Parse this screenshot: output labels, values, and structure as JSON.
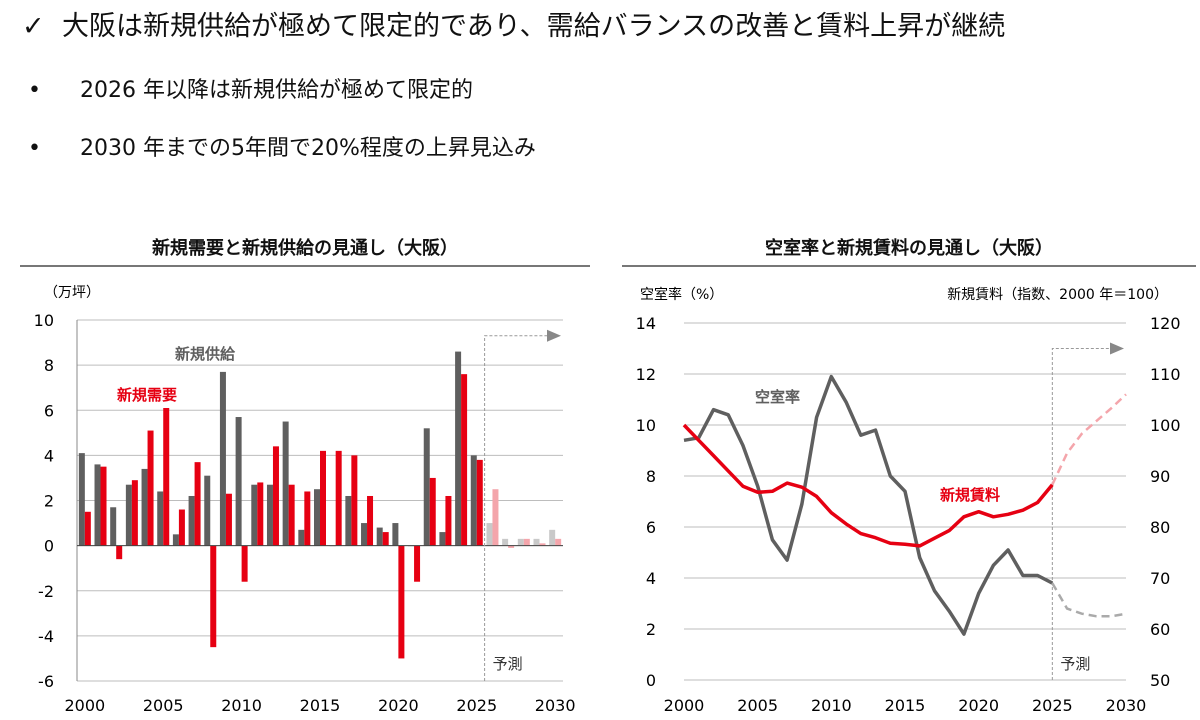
{
  "headline": {
    "check_icon": "check-icon",
    "text": "大阪は新規供給が極めて限定的であり、需給バランスの改善と賃料上昇が継続"
  },
  "bullets": [
    "2026 年以降は新規供給が極めて限定的",
    "2030 年までの5年間で20%程度の上昇見込み"
  ],
  "colors": {
    "supply": "#5f5f5f",
    "demand": "#e60012",
    "supply_forecast": "#c9c9c9",
    "demand_forecast": "#f4a5ab",
    "grid": "#bdbdbd"
  },
  "chart_data": [
    {
      "type": "bar",
      "title": "新規需要と新規供給の見通し（大阪）",
      "unit_label": "（万坪）",
      "ylim": [
        -6,
        10
      ],
      "yticks": [
        -6,
        -4,
        -2,
        0,
        2,
        4,
        6,
        8,
        10
      ],
      "xticks": [
        2000,
        2005,
        2010,
        2015,
        2020,
        2025,
        2030
      ],
      "grid": true,
      "forecast_start": 2025.5,
      "forecast_label": "予測",
      "x": [
        2000,
        2001,
        2002,
        2003,
        2004,
        2005,
        2006,
        2007,
        2008,
        2009,
        2010,
        2011,
        2012,
        2013,
        2014,
        2015,
        2016,
        2017,
        2018,
        2019,
        2020,
        2021,
        2022,
        2023,
        2024,
        2025,
        2026,
        2027,
        2028,
        2029,
        2030
      ],
      "series": [
        {
          "name": "新規供給",
          "values": [
            4.1,
            3.6,
            1.7,
            2.7,
            3.4,
            2.4,
            0.5,
            2.2,
            3.1,
            7.7,
            5.7,
            2.7,
            2.7,
            5.5,
            0.7,
            2.5,
            0,
            2.2,
            1.0,
            0.8,
            1.0,
            0,
            5.2,
            0.6,
            8.6,
            4.0,
            1.0,
            0.3,
            0.3,
            0.3,
            0.7
          ]
        },
        {
          "name": "新規需要",
          "values": [
            1.5,
            3.5,
            -0.6,
            2.9,
            5.1,
            6.1,
            1.6,
            3.7,
            -4.5,
            2.3,
            -1.6,
            2.8,
            4.4,
            2.7,
            2.4,
            4.2,
            4.2,
            4.0,
            2.2,
            0.6,
            -5.0,
            -1.6,
            3.0,
            2.2,
            7.6,
            3.8,
            2.5,
            -0.1,
            0.3,
            0.1,
            0.3
          ]
        }
      ]
    },
    {
      "type": "line",
      "title": "空室率と新規賃料の見通し（大阪）",
      "ylabel": "空室率（%）",
      "y2label": "新規賃料（指数、2000 年＝100）",
      "ylim": [
        0,
        14
      ],
      "yticks": [
        0,
        2,
        4,
        6,
        8,
        10,
        12,
        14
      ],
      "y2lim": [
        50,
        120
      ],
      "y2ticks": [
        50,
        60,
        70,
        80,
        90,
        100,
        110,
        120
      ],
      "xticks": [
        2000,
        2005,
        2010,
        2015,
        2020,
        2025,
        2030
      ],
      "grid": true,
      "forecast_start": 2025,
      "forecast_label": "予測",
      "series": [
        {
          "name": "空室率",
          "axis": "left",
          "x": [
            2000,
            2001,
            2002,
            2003,
            2004,
            2005,
            2006,
            2007,
            2008,
            2009,
            2010,
            2011,
            2012,
            2013,
            2014,
            2015,
            2016,
            2017,
            2018,
            2019,
            2020,
            2021,
            2022,
            2023,
            2024,
            2025
          ],
          "values": [
            9.4,
            9.5,
            10.6,
            10.4,
            9.2,
            7.6,
            5.5,
            4.7,
            6.9,
            10.3,
            11.9,
            10.9,
            9.6,
            9.8,
            8.0,
            7.4,
            4.8,
            3.5,
            2.7,
            1.8,
            3.4,
            4.5,
            5.1,
            4.1,
            4.1,
            3.8
          ],
          "forecast_x": [
            2025,
            2026,
            2027,
            2028,
            2029,
            2030
          ],
          "forecast_values": [
            3.8,
            2.8,
            2.6,
            2.5,
            2.5,
            2.6
          ]
        },
        {
          "name": "新規賃料",
          "axis": "right",
          "x": [
            2000,
            2001,
            2002,
            2003,
            2004,
            2005,
            2006,
            2007,
            2008,
            2009,
            2010,
            2011,
            2012,
            2013,
            2014,
            2015,
            2016,
            2017,
            2018,
            2019,
            2020,
            2021,
            2022,
            2023,
            2024,
            2025
          ],
          "values": [
            100,
            97,
            94,
            91,
            88,
            86.8,
            87,
            88.6,
            87.8,
            86,
            82.8,
            80.6,
            78.7,
            77.9,
            76.8,
            76.6,
            76.3,
            77.8,
            79.3,
            82,
            83,
            82,
            82.5,
            83.3,
            84.8,
            88.3
          ],
          "forecast_x": [
            2025,
            2026,
            2027,
            2028,
            2029,
            2030
          ],
          "forecast_values": [
            88.3,
            94.5,
            98.3,
            100.8,
            103.3,
            106
          ]
        }
      ]
    }
  ]
}
